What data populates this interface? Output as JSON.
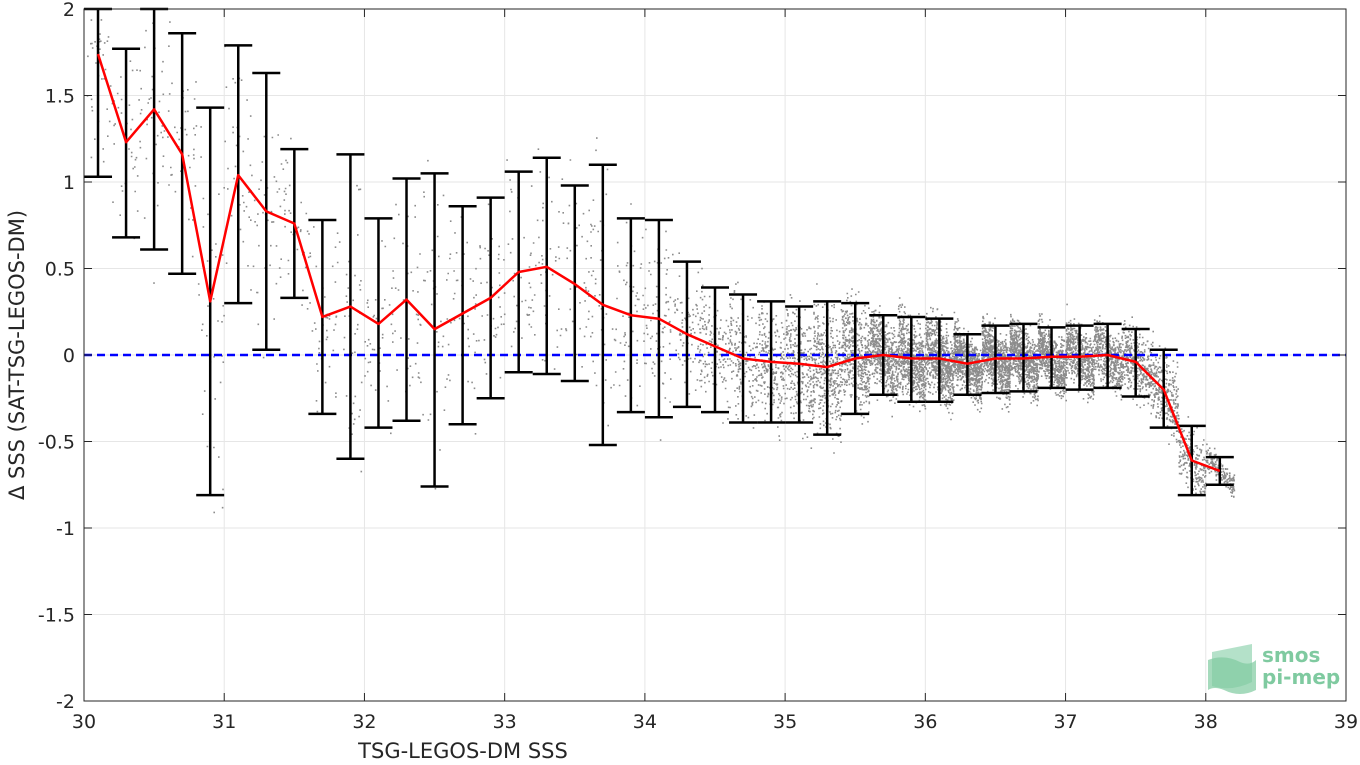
{
  "chart_data": {
    "type": "scatter",
    "xlabel": "TSG-LEGOS-DM SSS",
    "ylabel": "Δ SSS (SAT-TSG-LEGOS-DM)",
    "xlim": [
      30,
      39
    ],
    "ylim": [
      -2,
      2
    ],
    "xticks": [
      30,
      31,
      32,
      33,
      34,
      35,
      36,
      37,
      38,
      39
    ],
    "yticks": [
      2,
      1.5,
      1,
      0.5,
      0,
      -0.5,
      -1,
      -1.5,
      -2
    ],
    "grid": true,
    "reference_line": {
      "y": 0,
      "color": "#0000ff",
      "style": "dashed"
    },
    "colors": {
      "mean_line": "#ff0000",
      "error_bars": "#000000",
      "scatter": "#808080"
    },
    "binned_mean": {
      "x": [
        30.1,
        30.3,
        30.5,
        30.7,
        30.9,
        31.1,
        31.3,
        31.5,
        31.7,
        31.9,
        32.1,
        32.3,
        32.5,
        32.7,
        32.9,
        33.1,
        33.3,
        33.5,
        33.7,
        33.9,
        34.1,
        34.3,
        34.5,
        34.7,
        34.9,
        35.1,
        35.3,
        35.5,
        35.7,
        35.9,
        36.1,
        36.3,
        36.5,
        36.7,
        36.9,
        37.1,
        37.3,
        37.5,
        37.7,
        37.9,
        38.1
      ],
      "mean": [
        1.74,
        1.23,
        1.42,
        1.16,
        0.31,
        1.04,
        0.83,
        0.76,
        0.22,
        0.28,
        0.18,
        0.32,
        0.15,
        0.24,
        0.33,
        0.48,
        0.51,
        0.41,
        0.29,
        0.23,
        0.21,
        0.12,
        0.05,
        -0.02,
        -0.04,
        -0.05,
        -0.07,
        -0.02,
        0.0,
        -0.02,
        -0.02,
        -0.05,
        -0.02,
        -0.02,
        -0.01,
        -0.01,
        0.0,
        -0.04,
        -0.2,
        -0.61,
        -0.67
      ],
      "lower": [
        1.03,
        0.68,
        0.61,
        0.47,
        -0.81,
        0.3,
        0.03,
        0.33,
        -0.34,
        -0.6,
        -0.42,
        -0.38,
        -0.76,
        -0.4,
        -0.25,
        -0.1,
        -0.11,
        -0.15,
        -0.52,
        -0.33,
        -0.36,
        -0.3,
        -0.33,
        -0.39,
        -0.39,
        -0.39,
        -0.46,
        -0.34,
        -0.23,
        -0.27,
        -0.27,
        -0.23,
        -0.22,
        -0.21,
        -0.19,
        -0.2,
        -0.19,
        -0.24,
        -0.42,
        -0.81,
        -0.75
      ],
      "upper": [
        2.0,
        1.77,
        2.0,
        1.86,
        1.43,
        1.79,
        1.63,
        1.19,
        0.78,
        1.16,
        0.79,
        1.02,
        1.05,
        0.86,
        0.91,
        1.06,
        1.14,
        0.98,
        1.1,
        0.79,
        0.78,
        0.54,
        0.39,
        0.35,
        0.31,
        0.28,
        0.31,
        0.3,
        0.23,
        0.22,
        0.21,
        0.12,
        0.17,
        0.18,
        0.16,
        0.17,
        0.18,
        0.15,
        0.03,
        -0.41,
        -0.59
      ]
    }
  },
  "logo": {
    "line1": "smos",
    "line2": "pi-mep"
  }
}
